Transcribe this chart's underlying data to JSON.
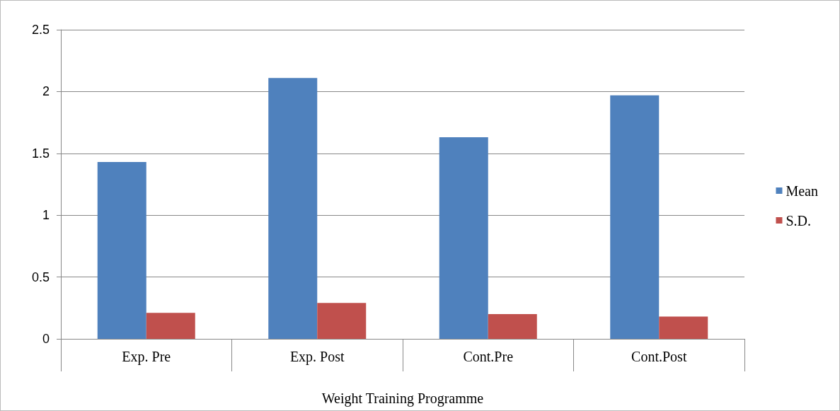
{
  "chart_data": {
    "type": "bar",
    "xlabel": "Weight Training Programme",
    "categories": [
      "Exp. Pre",
      "Exp. Post",
      "Cont.Pre",
      "Cont.Post"
    ],
    "series": [
      {
        "name": "Mean",
        "color": "#4f81bd",
        "values": [
          1.43,
          2.11,
          1.63,
          1.97
        ]
      },
      {
        "name": "S.D.",
        "color": "#c0504d",
        "values": [
          0.21,
          0.29,
          0.2,
          0.18
        ]
      }
    ],
    "ylim": [
      0,
      2.5
    ],
    "yticks": [
      0,
      0.5,
      1,
      1.5,
      2,
      2.5
    ],
    "grid": "y",
    "legend": "right"
  }
}
